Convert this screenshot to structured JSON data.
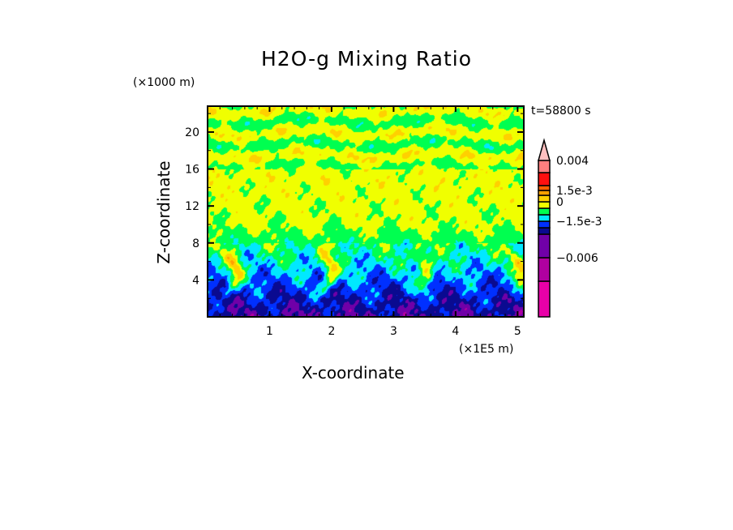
{
  "chart_data": {
    "type": "heatmap",
    "title": "H2O-g Mixing Ratio",
    "xlabel": "X-coordinate",
    "ylabel": "Z-coordinate",
    "x_unit": "(×1E5 m)",
    "y_unit": "(×1000 m)",
    "time_label": "t=58800 s",
    "xlim": [
      0,
      5.1
    ],
    "ylim": [
      0,
      22.8
    ],
    "x_ticks": [
      1,
      2,
      3,
      4,
      5
    ],
    "x_tick_labels": [
      "1",
      "2",
      "3",
      "4",
      "5"
    ],
    "y_ticks": [
      4,
      8,
      12,
      16,
      20
    ],
    "y_tick_labels": [
      "4",
      "8",
      "12",
      "16",
      "20"
    ],
    "colorbar": {
      "labels": [
        {
          "text": "0.004",
          "level": 12
        },
        {
          "text": "1.5e-3",
          "level": 9
        },
        {
          "text": "0",
          "level": 7
        },
        {
          "text": "−1.5e-3",
          "level": 4
        },
        {
          "text": "−0.006",
          "level": 1
        }
      ],
      "colors_low_to_high": [
        "#e800a8",
        "#b000a0",
        "#7000a8",
        "#0a0a90",
        "#0030ff",
        "#00e8ff",
        "#00ff50",
        "#f0ff00",
        "#ffd000",
        "#ffa000",
        "#ff6000",
        "#ff1010",
        "#ff7f7f"
      ],
      "extend_top_color": "#ffc0c0"
    }
  }
}
